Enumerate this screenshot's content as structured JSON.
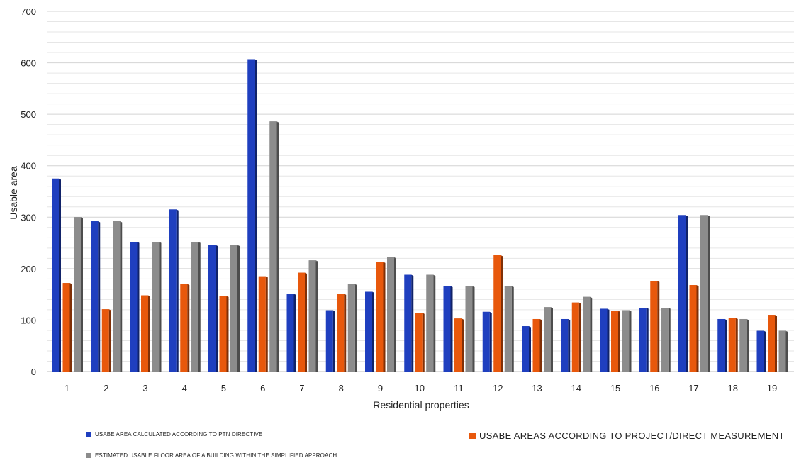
{
  "chart_data": {
    "type": "bar",
    "xlabel": "Residential properties",
    "ylabel": "Usable area",
    "ylim": [
      0,
      700
    ],
    "yticks": [
      0,
      100,
      200,
      300,
      400,
      500,
      600,
      700
    ],
    "categories": [
      "1",
      "2",
      "3",
      "4",
      "5",
      "6",
      "7",
      "8",
      "9",
      "10",
      "11",
      "12",
      "13",
      "14",
      "15",
      "16",
      "17",
      "18",
      "19"
    ],
    "series": [
      {
        "name": "USABE AREA CALCULATED ACCORDING TO PTN DIRECTIVE",
        "color": "#1f3fbf",
        "values": [
          375,
          292,
          252,
          315,
          246,
          607,
          151,
          119,
          155,
          188,
          166,
          116,
          88,
          102,
          122,
          124,
          304,
          102,
          79
        ]
      },
      {
        "name": "USABE AREAS ACCORDING TO PROJECT/DIRECT MEASUREMENT",
        "color": "#e8580c",
        "values": [
          172,
          121,
          148,
          170,
          147,
          185,
          192,
          151,
          213,
          114,
          103,
          226,
          102,
          134,
          118,
          176,
          168,
          104,
          110
        ]
      },
      {
        "name": "ESTIMATED USABLE FLOOR AREA OF A BUILDING WITHIN THE SIMPLIFIED APPROACH",
        "color": "#8c8c8c",
        "values": [
          300,
          292,
          252,
          252,
          246,
          486,
          216,
          170,
          222,
          188,
          166,
          166,
          125,
          145,
          119,
          124,
          304,
          102,
          79
        ]
      }
    ],
    "grid": true,
    "legend_position": "bottom"
  }
}
